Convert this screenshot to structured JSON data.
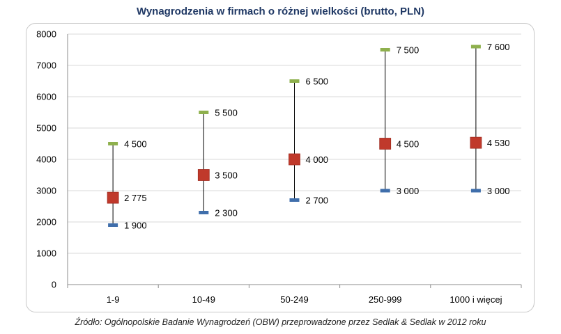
{
  "title": "Wynagrodzenia w firmach o różnej wielkości (brutto, PLN)",
  "source": "Źródło: Ogólnopolskie Badanie Wynagrodzeń (OBW) przeprowadzone przez Sedlak & Sedlak w 2012 roku",
  "colors": {
    "high": "#8eb04d",
    "median": "#c0392b",
    "low": "#3f6eab",
    "line": "#000000",
    "grid": "#d9d9d9",
    "title": "#1f3864"
  },
  "chart_data": {
    "type": "high-low",
    "title": "Wynagrodzenia w firmach o różnej wielkości (brutto, PLN)",
    "categories": [
      "1-9",
      "10-49",
      "50-249",
      "250-999",
      "1000 i więcej"
    ],
    "ylim": [
      0,
      8000
    ],
    "yticks": [
      0,
      1000,
      2000,
      3000,
      4000,
      5000,
      6000,
      7000,
      8000
    ],
    "ytick_labels": [
      "0",
      "1000",
      "2000",
      "3000",
      "4000",
      "5000",
      "6000",
      "7000",
      "8000"
    ],
    "grid": true,
    "series": [
      {
        "key": "high",
        "values": [
          4500,
          5500,
          6500,
          7500,
          7600
        ],
        "labels": [
          "4 500",
          "5 500",
          "6 500",
          "7 500",
          "7 600"
        ]
      },
      {
        "key": "median",
        "values": [
          2775,
          3500,
          4000,
          4500,
          4530
        ],
        "labels": [
          "2 775",
          "3 500",
          "4 000",
          "4 500",
          "4 530"
        ]
      },
      {
        "key": "low",
        "values": [
          1900,
          2300,
          2700,
          3000,
          3000
        ],
        "labels": [
          "1 900",
          "2 300",
          "2 700",
          "3 000",
          "3 000"
        ]
      }
    ]
  }
}
